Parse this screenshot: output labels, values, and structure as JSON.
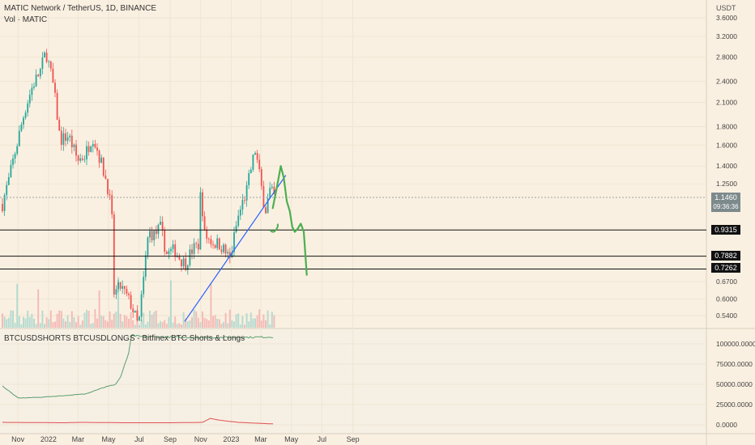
{
  "header": {
    "symbol_title": "MATIC Network / TetherUS, 1D, BINANCE",
    "volume_title": "Vol · MATIC",
    "indicator_title": "BTCUSDSHORTS BTCUSDLONGS - Bitfinex BTC Shorts & Longs",
    "currency": "USDT"
  },
  "colors": {
    "background": "#faf0e1",
    "up": "#26a69a",
    "down": "#ef5350",
    "trendline": "#2962ff",
    "projection": "#4caf50",
    "longs": "#5a9e6f",
    "shorts": "#e05050",
    "current_tag": "#7d8a8c"
  },
  "chart_data": [
    {
      "type": "candlestick",
      "title": "MATIC Network / TetherUS, 1D, BINANCE",
      "y_scale": "log",
      "y_ticks": [
        "3.6000",
        "3.2000",
        "2.8000",
        "2.4000",
        "2.1000",
        "1.8000",
        "1.6000",
        "1.4000",
        "1.2500",
        "0.7262",
        "0.6700",
        "0.6000",
        "0.5400"
      ],
      "x_ticks": [
        "Nov",
        "2022",
        "Mar",
        "May",
        "Jul",
        "Sep",
        "Nov",
        "2023",
        "Mar",
        "May",
        "Jul",
        "Sep"
      ],
      "price_path": {
        "dates": [
          "2021-10-01",
          "2021-10-15",
          "2021-11-01",
          "2021-11-15",
          "2021-12-01",
          "2021-12-15",
          "2021-12-27",
          "2022-01-10",
          "2022-01-24",
          "2022-02-10",
          "2022-02-28",
          "2022-03-15",
          "2022-03-30",
          "2022-04-15",
          "2022-05-01",
          "2022-05-09",
          "2022-05-12",
          "2022-05-25",
          "2022-06-15",
          "2022-06-30",
          "2022-07-10",
          "2022-07-20",
          "2022-08-01",
          "2022-08-12",
          "2022-08-25",
          "2022-09-10",
          "2022-09-20",
          "2022-10-01",
          "2022-10-15",
          "2022-10-28",
          "2022-11-01",
          "2022-11-09",
          "2022-11-25",
          "2022-12-10",
          "2022-12-30",
          "2023-01-14",
          "2023-02-01",
          "2023-02-18",
          "2023-03-01",
          "2023-03-10",
          "2023-03-20",
          "2023-03-28"
        ],
        "close": [
          1.1,
          1.3,
          1.65,
          2.0,
          2.35,
          2.55,
          2.9,
          2.35,
          1.65,
          1.7,
          1.45,
          1.5,
          1.7,
          1.45,
          1.2,
          0.95,
          0.62,
          0.65,
          0.58,
          0.5,
          0.68,
          0.92,
          0.9,
          0.95,
          0.8,
          0.82,
          0.78,
          0.75,
          0.82,
          0.85,
          1.2,
          0.9,
          0.86,
          0.85,
          0.77,
          1.0,
          1.2,
          1.55,
          1.25,
          1.05,
          1.2,
          1.146
        ]
      },
      "current_price": {
        "value": "1.1460",
        "countdown": "09:36:36"
      },
      "horizontal_levels": [
        {
          "value": 0.9315,
          "label": "0.9315"
        },
        {
          "value": 0.7882,
          "label": "0.7882"
        },
        {
          "value": 0.7262,
          "label": "0.7262"
        }
      ],
      "trendline": {
        "points": [
          [
            "2022-09-30",
            0.52
          ],
          [
            "2023-04-20",
            1.32
          ]
        ]
      },
      "projection_path": {
        "dates": [
          "2023-03-25",
          "2023-04-02",
          "2023-04-10",
          "2023-04-16",
          "2023-04-22",
          "2023-04-28",
          "2023-05-03",
          "2023-05-08",
          "2023-05-14",
          "2023-05-20",
          "2023-05-26",
          "2023-06-01"
        ],
        "price": [
          1.07,
          1.22,
          1.4,
          1.3,
          1.12,
          1.05,
          0.95,
          0.92,
          0.94,
          0.97,
          0.92,
          0.7
        ]
      }
    },
    {
      "type": "area",
      "title": "BTCUSDSHORTS BTCUSDLONGS - Bitfinex BTC Shorts & Longs",
      "y_ticks": [
        "100000.0000",
        "75000.0000",
        "50000.0000",
        "25000.0000",
        "0.0000"
      ],
      "series": [
        {
          "name": "BTCUSDLONGS",
          "dates": [
            "2021-10-01",
            "2021-11-01",
            "2021-12-15",
            "2022-02-01",
            "2022-03-15",
            "2022-04-15",
            "2022-05-15",
            "2022-05-25",
            "2022-06-10",
            "2022-06-16",
            "2022-07-01",
            "2022-10-01",
            "2023-01-01",
            "2023-03-28"
          ],
          "values": [
            48000,
            33000,
            34000,
            36000,
            38000,
            45000,
            50000,
            59000,
            88000,
            111000,
            109000,
            108000,
            108000,
            108500
          ]
        },
        {
          "name": "BTCUSDSHORTS",
          "dates": [
            "2021-10-01",
            "2022-02-01",
            "2022-03-10",
            "2022-06-01",
            "2022-09-01",
            "2022-11-05",
            "2022-11-20",
            "2022-12-10",
            "2023-01-15",
            "2023-03-28"
          ],
          "values": [
            3000,
            2500,
            3000,
            2500,
            2500,
            3000,
            8000,
            5500,
            3000,
            1000
          ]
        }
      ]
    }
  ]
}
